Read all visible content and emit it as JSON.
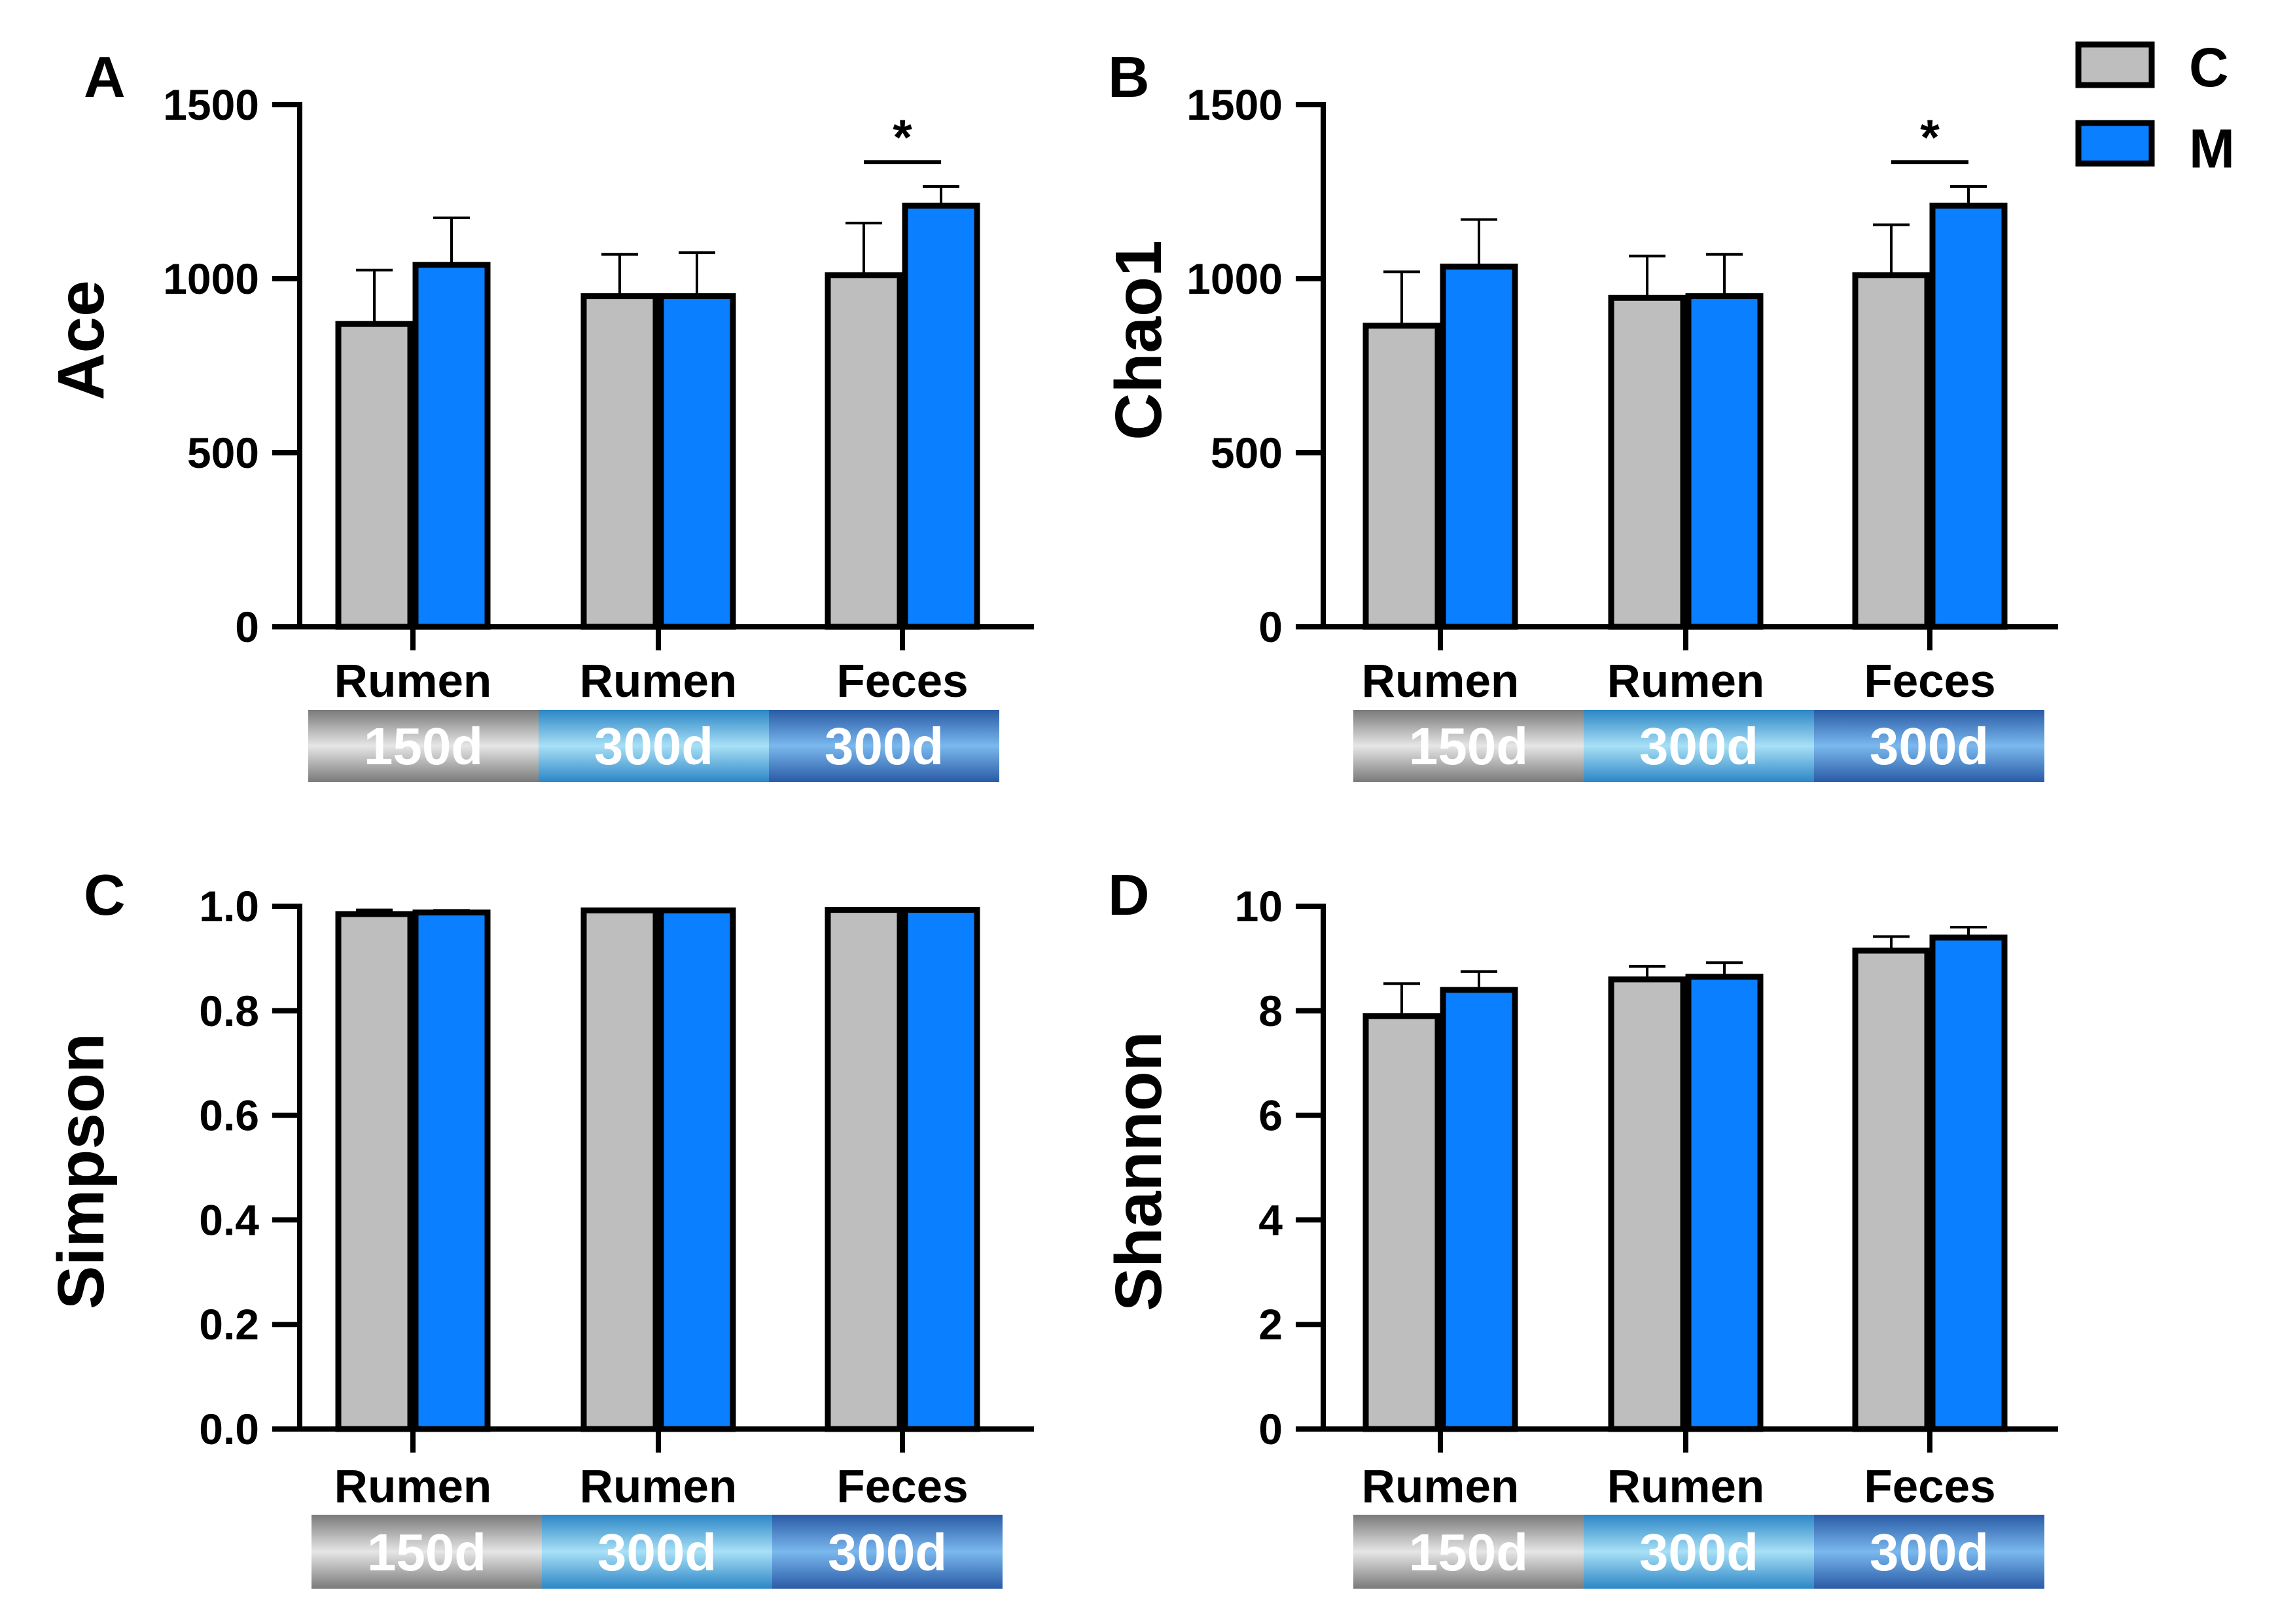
{
  "legend": [
    {
      "label": "C",
      "color": "#BEBEBE"
    },
    {
      "label": "M",
      "color": "#0A7FFF"
    }
  ],
  "colors": {
    "C": "#BEBEBE",
    "M": "#0A7FFF",
    "box_150d": [
      "#7A7A7A",
      "#E6E6E6"
    ],
    "box_rumen300d": [
      "#2C86C6",
      "#A8E0F6"
    ],
    "box_feces300d": [
      "#2A5BA6",
      "#7AB8EE"
    ]
  },
  "chart_data": [
    {
      "panel": "A",
      "type": "bar",
      "ylabel": "Ace",
      "ylim": [
        0,
        1500
      ],
      "yticks": [
        0,
        500,
        1000,
        1500
      ],
      "categories": [
        "Rumen",
        "Rumen",
        "Feces"
      ],
      "category_boxes": [
        "150d",
        "300d",
        "300d"
      ],
      "series": [
        {
          "name": "C",
          "values": [
            870,
            950,
            1010
          ],
          "errors": [
            155,
            120,
            150
          ]
        },
        {
          "name": "M",
          "values": [
            1040,
            950,
            1210
          ],
          "errors": [
            135,
            125,
            55
          ]
        }
      ],
      "annotations": [
        {
          "group": 2,
          "text": "*"
        }
      ]
    },
    {
      "panel": "B",
      "type": "bar",
      "ylabel": "Chao1",
      "ylim": [
        0,
        1500
      ],
      "yticks": [
        0,
        500,
        1000,
        1500
      ],
      "categories": [
        "Rumen",
        "Rumen",
        "Feces"
      ],
      "category_boxes": [
        "150d",
        "300d",
        "300d"
      ],
      "series": [
        {
          "name": "C",
          "values": [
            865,
            945,
            1010
          ],
          "errors": [
            155,
            120,
            145
          ]
        },
        {
          "name": "M",
          "values": [
            1035,
            950,
            1210
          ],
          "errors": [
            135,
            120,
            55
          ]
        }
      ],
      "annotations": [
        {
          "group": 2,
          "text": "*"
        }
      ]
    },
    {
      "panel": "C",
      "type": "bar",
      "ylabel": "Simpson",
      "ylim": [
        0,
        1.0
      ],
      "yticks": [
        "0.0",
        "0.2",
        "0.4",
        "0.6",
        "0.8",
        "1.0"
      ],
      "categories": [
        "Rumen",
        "Rumen",
        "Feces"
      ],
      "category_boxes": [
        "150d",
        "300d",
        "300d"
      ],
      "series": [
        {
          "name": "C",
          "values": [
            0.985,
            0.992,
            0.993
          ],
          "errors": [
            0.008,
            0.002,
            0.002
          ]
        },
        {
          "name": "M",
          "values": [
            0.988,
            0.992,
            0.993
          ],
          "errors": [
            0.004,
            0.002,
            0.002
          ]
        }
      ],
      "annotations": []
    },
    {
      "panel": "D",
      "type": "bar",
      "ylabel": "Shannon",
      "ylim": [
        0,
        10
      ],
      "yticks": [
        0,
        2,
        4,
        6,
        8,
        10
      ],
      "categories": [
        "Rumen",
        "Rumen",
        "Feces"
      ],
      "category_boxes": [
        "150d",
        "300d",
        "300d"
      ],
      "series": [
        {
          "name": "C",
          "values": [
            7.9,
            8.6,
            9.15
          ],
          "errors": [
            0.62,
            0.25,
            0.27
          ]
        },
        {
          "name": "M",
          "values": [
            8.4,
            8.65,
            9.4
          ],
          "errors": [
            0.35,
            0.27,
            0.2
          ]
        }
      ],
      "annotations": []
    }
  ]
}
